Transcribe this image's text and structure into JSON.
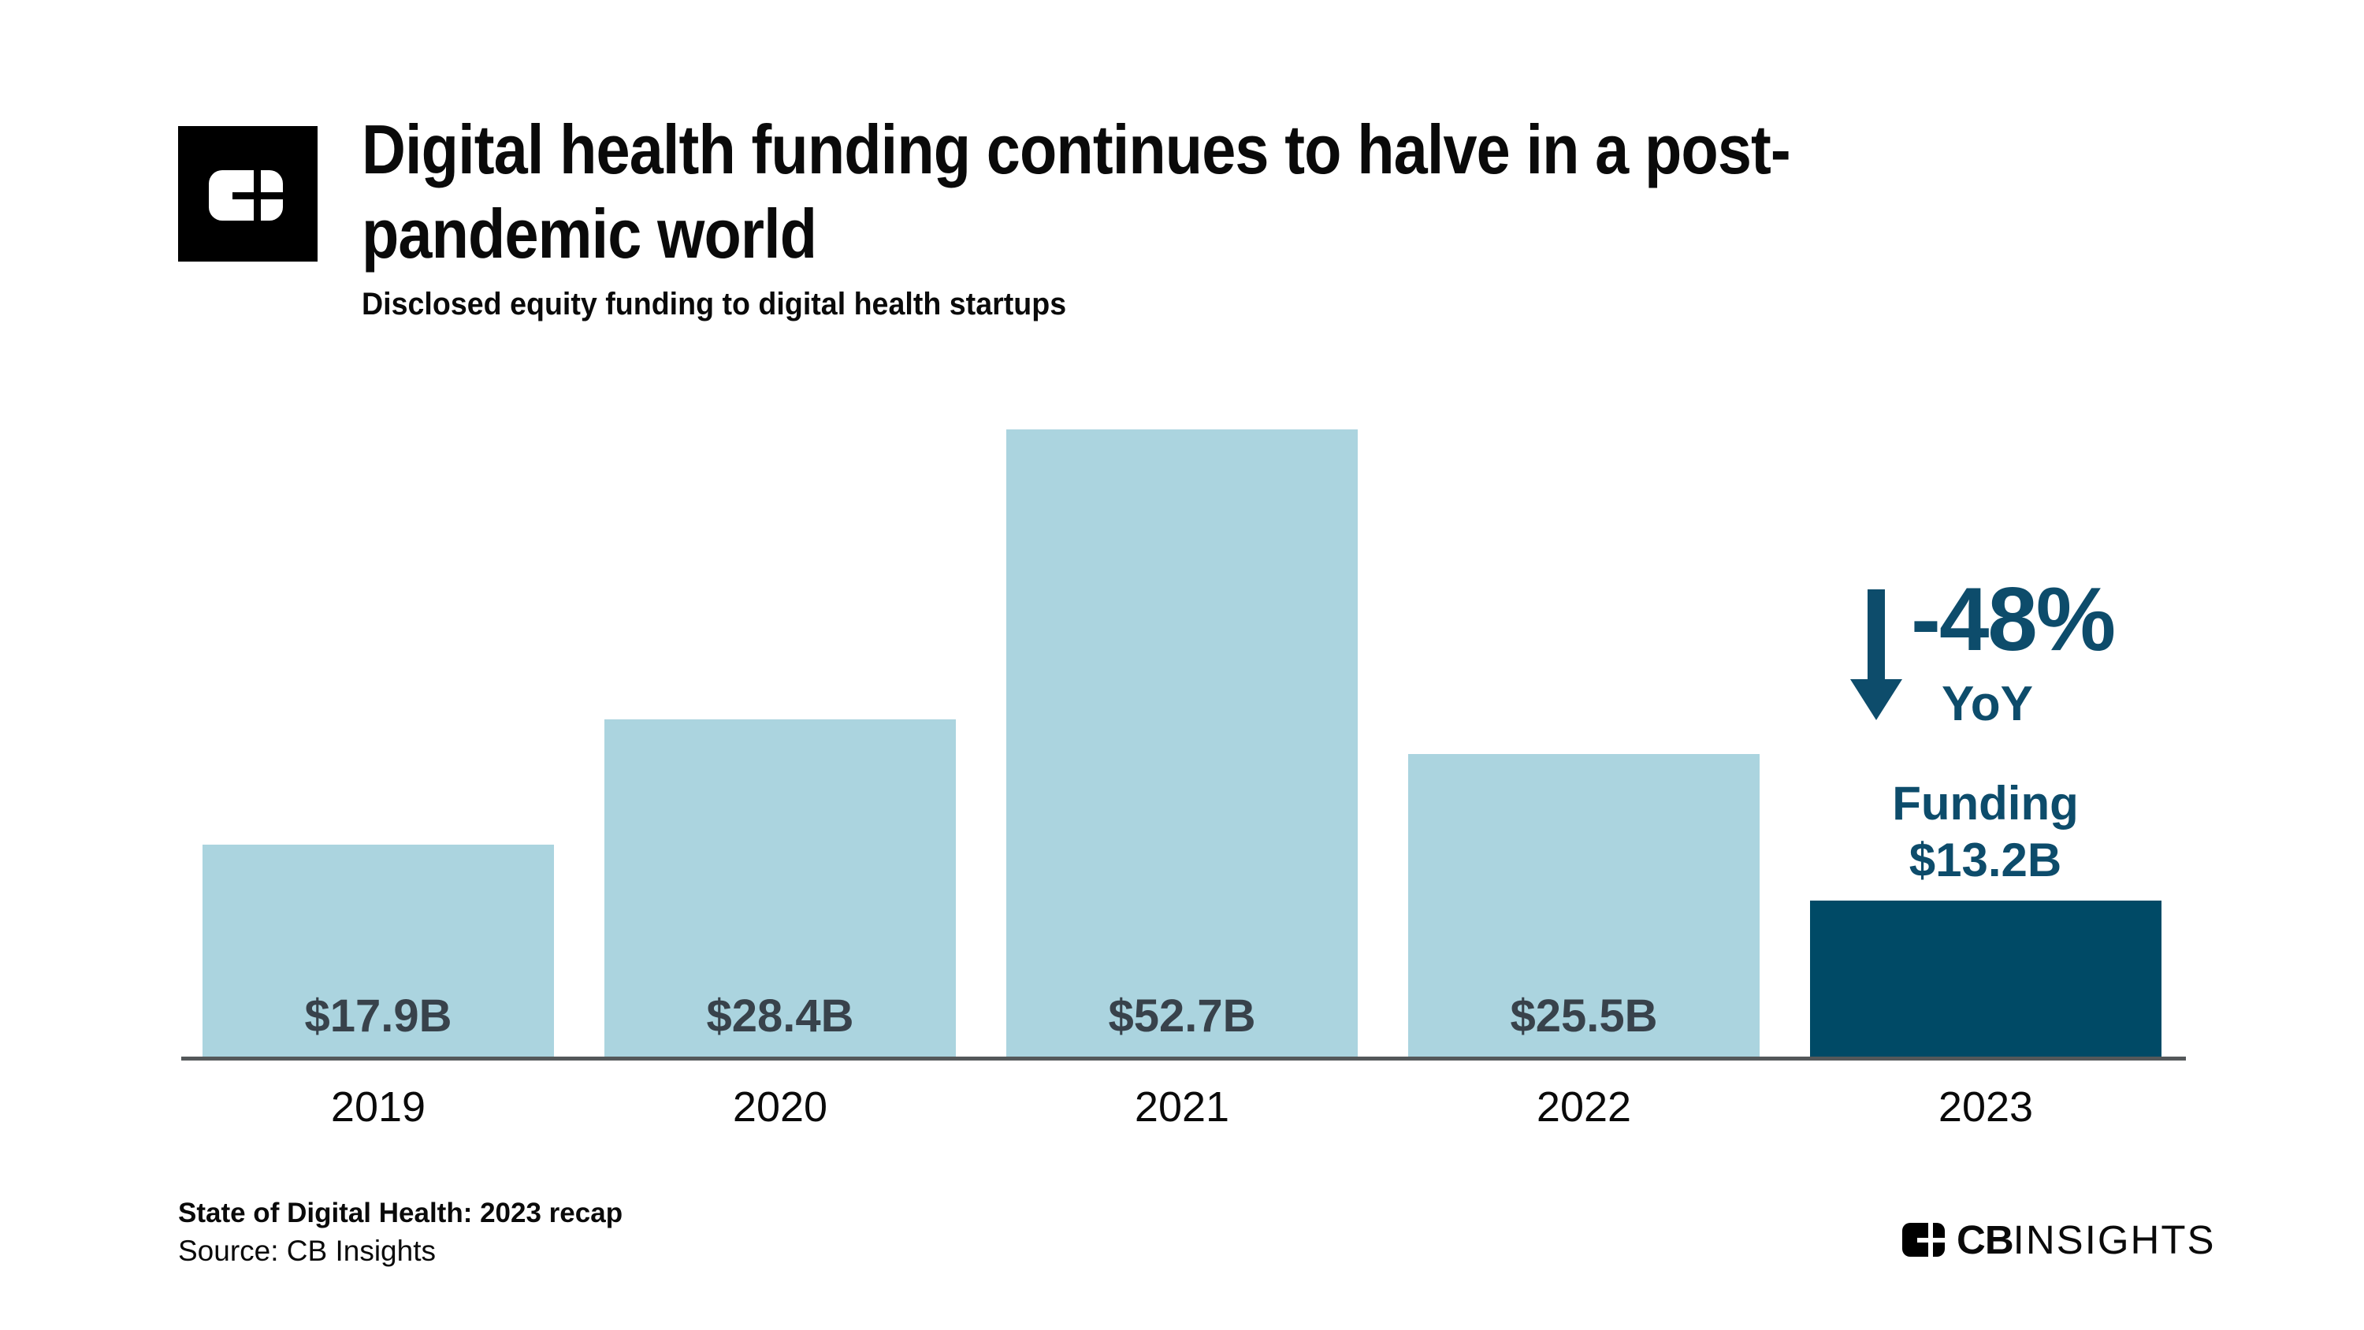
{
  "header": {
    "title_line1": "Digital health funding continues to halve in a post-",
    "title_line2": "pandemic world",
    "subtitle": "Disclosed equity funding to digital health startups"
  },
  "chart_data": {
    "type": "bar",
    "title": "Disclosed equity funding to digital health startups",
    "categories": [
      "2019",
      "2020",
      "2021",
      "2022",
      "2023"
    ],
    "values": [
      17.9,
      28.4,
      52.7,
      25.5,
      13.2
    ],
    "bar_labels": [
      "$17.9B",
      "$28.4B",
      "$52.7B",
      "$25.5B",
      ""
    ],
    "unit": "USD billions",
    "xlabel": "",
    "ylabel": "",
    "ylim": [
      0,
      52.7
    ],
    "grid": false,
    "legend": "none",
    "highlight_index": 4,
    "colors": {
      "bar_default": "#ABD4DF",
      "bar_highlight": "#004A66",
      "value_label": "#38424B",
      "annotation": "#0D4C6B",
      "axis": "#54585A"
    },
    "annotation": {
      "arrow": "down",
      "delta": "-48%",
      "delta_label": "YoY",
      "funding_label": "Funding",
      "funding_value": "$13.2B"
    }
  },
  "footer": {
    "report_title": "State of Digital Health: 2023 recap",
    "source": "Source: CB Insights"
  },
  "branding": {
    "mark": "cb-insights-window-mark",
    "wordmark_bold": "CB",
    "wordmark_light": "INSIGHTS"
  }
}
